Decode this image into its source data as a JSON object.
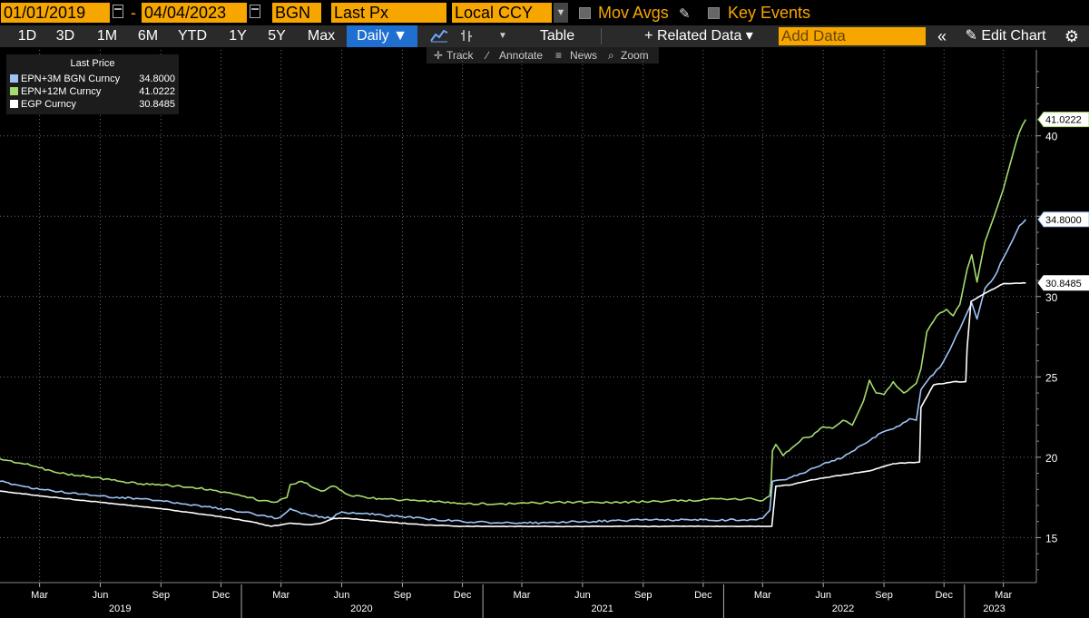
{
  "toolbar": {
    "start_date": "01/01/2019",
    "end_date": "04/04/2023",
    "source": "BGN",
    "field": "Last Px",
    "currency": "Local CCY",
    "mov_avgs": "Mov Avgs",
    "key_events": "Key Events"
  },
  "ranges": [
    "1D",
    "3D",
    "1M",
    "6M",
    "YTD",
    "1Y",
    "5Y",
    "Max"
  ],
  "periodicity": "Daily ▼",
  "table_label": "Table",
  "related_data": "+ Related Data ▾",
  "add_data_placeholder": "Add Data",
  "collapse": "«",
  "edit_chart": "✎ Edit Chart",
  "settings_icon": "gear-icon",
  "subtools": {
    "track": "Track",
    "annotate": "Annotate",
    "news": "News",
    "zoom": "Zoom"
  },
  "chart_data": {
    "type": "line",
    "legend": {
      "header": "Last Price",
      "placement": "top-left",
      "entries": [
        {
          "name": "EPN+3M BGN Curncy",
          "value": "34.8000",
          "color": "#9dc3f5"
        },
        {
          "name": "EPN+12M Curncy",
          "value": "41.0222",
          "color": "#a6db6e"
        },
        {
          "name": "EGP Curncy",
          "value": "30.8485",
          "color": "#ffffff"
        }
      ]
    },
    "ylim": [
      12.2,
      44.5
    ],
    "yticks": [
      15,
      20,
      25,
      30,
      35,
      40
    ],
    "ytick_labels": [
      "15",
      "20",
      "25",
      "30",
      "",
      "40"
    ],
    "grid": true,
    "xlim": [
      "2018-12-31",
      "2023-04-20"
    ],
    "x_month_ticks": [
      {
        "date": "2019-03-01",
        "label": "Mar"
      },
      {
        "date": "2019-06-01",
        "label": "Jun"
      },
      {
        "date": "2019-09-01",
        "label": "Sep"
      },
      {
        "date": "2019-12-01",
        "label": "Dec"
      },
      {
        "date": "2020-03-01",
        "label": "Mar"
      },
      {
        "date": "2020-06-01",
        "label": "Jun"
      },
      {
        "date": "2020-09-01",
        "label": "Sep"
      },
      {
        "date": "2020-12-01",
        "label": "Dec"
      },
      {
        "date": "2021-03-01",
        "label": "Mar"
      },
      {
        "date": "2021-06-01",
        "label": "Jun"
      },
      {
        "date": "2021-09-01",
        "label": "Sep"
      },
      {
        "date": "2021-12-01",
        "label": "Dec"
      },
      {
        "date": "2022-03-01",
        "label": "Mar"
      },
      {
        "date": "2022-06-01",
        "label": "Jun"
      },
      {
        "date": "2022-09-01",
        "label": "Sep"
      },
      {
        "date": "2022-12-01",
        "label": "Dec"
      },
      {
        "date": "2023-03-01",
        "label": "Mar"
      }
    ],
    "x_year_ticks": [
      {
        "date": "2019-07-01",
        "label": "2019"
      },
      {
        "date": "2020-07-01",
        "label": "2020"
      },
      {
        "date": "2021-07-01",
        "label": "2021"
      },
      {
        "date": "2022-07-01",
        "label": "2022"
      },
      {
        "date": "2023-02-15",
        "label": "2023"
      }
    ],
    "x_year_dividers": [
      "2020-01-01",
      "2021-01-01",
      "2022-01-01",
      "2023-01-01"
    ],
    "last_value_labels": [
      {
        "series": "EPN+12M Curncy",
        "text": "41.0222",
        "y": 41.0222,
        "color": "#a6db6e"
      },
      {
        "series": "EPN+3M BGN Curncy",
        "text": "34.8000",
        "y": 34.8,
        "color": "#9dc3f5"
      },
      {
        "series": "EGP Curncy",
        "text": "30.8485",
        "y": 30.8485,
        "color": "#ffffff"
      }
    ],
    "series": [
      {
        "name": "EPN+12M Curncy",
        "color": "#a6db6e",
        "points": [
          [
            "2018-12-31",
            19.9
          ],
          [
            "2019-02-15",
            19.5
          ],
          [
            "2019-04-01",
            19.0
          ],
          [
            "2019-05-15",
            18.8
          ],
          [
            "2019-07-01",
            18.5
          ],
          [
            "2019-08-15",
            18.3
          ],
          [
            "2019-10-01",
            18.2
          ],
          [
            "2019-11-15",
            18.0
          ],
          [
            "2020-01-01",
            17.6
          ],
          [
            "2020-02-01",
            17.3
          ],
          [
            "2020-02-20",
            17.2
          ],
          [
            "2020-03-10",
            17.5
          ],
          [
            "2020-03-15",
            18.3
          ],
          [
            "2020-04-01",
            18.5
          ],
          [
            "2020-05-01",
            17.9
          ],
          [
            "2020-05-20",
            18.2
          ],
          [
            "2020-06-15",
            17.6
          ],
          [
            "2020-08-01",
            17.4
          ],
          [
            "2020-10-01",
            17.3
          ],
          [
            "2020-12-01",
            17.1
          ],
          [
            "2021-02-01",
            17.1
          ],
          [
            "2021-05-01",
            17.2
          ],
          [
            "2021-08-01",
            17.2
          ],
          [
            "2021-11-01",
            17.3
          ],
          [
            "2022-01-01",
            17.4
          ],
          [
            "2022-02-15",
            17.4
          ],
          [
            "2022-03-01",
            17.3
          ],
          [
            "2022-03-12",
            17.6
          ],
          [
            "2022-03-14",
            18.5
          ],
          [
            "2022-03-16",
            20.4
          ],
          [
            "2022-03-21",
            20.8
          ],
          [
            "2022-04-01",
            20.1
          ],
          [
            "2022-04-15",
            20.6
          ],
          [
            "2022-05-01",
            21.2
          ],
          [
            "2022-05-15",
            21.3
          ],
          [
            "2022-06-01",
            21.9
          ],
          [
            "2022-06-15",
            21.8
          ],
          [
            "2022-07-01",
            22.3
          ],
          [
            "2022-07-15",
            22.0
          ],
          [
            "2022-08-01",
            23.5
          ],
          [
            "2022-08-10",
            24.8
          ],
          [
            "2022-08-20",
            24.0
          ],
          [
            "2022-09-01",
            23.9
          ],
          [
            "2022-09-15",
            24.7
          ],
          [
            "2022-10-01",
            24.0
          ],
          [
            "2022-10-20",
            24.6
          ],
          [
            "2022-10-27",
            25.5
          ],
          [
            "2022-11-05",
            27.8
          ],
          [
            "2022-11-20",
            28.8
          ],
          [
            "2022-12-05",
            29.2
          ],
          [
            "2022-12-15",
            28.8
          ],
          [
            "2022-12-25",
            29.5
          ],
          [
            "2023-01-05",
            31.7
          ],
          [
            "2023-01-12",
            32.6
          ],
          [
            "2023-01-20",
            30.9
          ],
          [
            "2023-02-01",
            33.4
          ],
          [
            "2023-02-15",
            35.0
          ],
          [
            "2023-03-01",
            36.7
          ],
          [
            "2023-03-15",
            38.8
          ],
          [
            "2023-03-25",
            40.2
          ],
          [
            "2023-04-04",
            41.0222
          ]
        ]
      },
      {
        "name": "EPN+3M BGN Curncy",
        "color": "#9dc3f5",
        "points": [
          [
            "2018-12-31",
            18.5
          ],
          [
            "2019-03-01",
            18.0
          ],
          [
            "2019-06-01",
            17.6
          ],
          [
            "2019-09-01",
            17.3
          ],
          [
            "2019-12-01",
            16.8
          ],
          [
            "2020-02-01",
            16.4
          ],
          [
            "2020-02-25",
            16.2
          ],
          [
            "2020-03-15",
            16.8
          ],
          [
            "2020-04-01",
            16.5
          ],
          [
            "2020-05-15",
            16.2
          ],
          [
            "2020-06-01",
            16.6
          ],
          [
            "2020-07-01",
            16.5
          ],
          [
            "2020-09-01",
            16.3
          ],
          [
            "2020-12-01",
            16.0
          ],
          [
            "2021-03-01",
            15.9
          ],
          [
            "2021-06-01",
            16.0
          ],
          [
            "2021-09-01",
            16.1
          ],
          [
            "2021-12-01",
            16.1
          ],
          [
            "2022-02-01",
            16.1
          ],
          [
            "2022-03-01",
            16.2
          ],
          [
            "2022-03-12",
            16.7
          ],
          [
            "2022-03-16",
            18.5
          ],
          [
            "2022-04-01",
            18.6
          ],
          [
            "2022-05-01",
            19.0
          ],
          [
            "2022-06-01",
            19.6
          ],
          [
            "2022-07-01",
            20.0
          ],
          [
            "2022-08-01",
            20.8
          ],
          [
            "2022-08-15",
            21.2
          ],
          [
            "2022-09-01",
            21.6
          ],
          [
            "2022-09-20",
            21.9
          ],
          [
            "2022-10-10",
            22.4
          ],
          [
            "2022-10-20",
            22.3
          ],
          [
            "2022-10-27",
            24.2
          ],
          [
            "2022-11-10",
            25.0
          ],
          [
            "2022-11-25",
            25.6
          ],
          [
            "2022-12-10",
            26.7
          ],
          [
            "2022-12-20",
            27.6
          ],
          [
            "2023-01-05",
            29.0
          ],
          [
            "2023-01-12",
            29.6
          ],
          [
            "2023-01-20",
            28.6
          ],
          [
            "2023-02-01",
            30.5
          ],
          [
            "2023-02-15",
            31.2
          ],
          [
            "2023-03-01",
            32.4
          ],
          [
            "2023-03-15",
            33.5
          ],
          [
            "2023-03-25",
            34.4
          ],
          [
            "2023-04-04",
            34.8
          ]
        ]
      },
      {
        "name": "EGP Curncy",
        "color": "#ffffff",
        "points": [
          [
            "2018-12-31",
            17.9
          ],
          [
            "2019-03-01",
            17.6
          ],
          [
            "2019-06-01",
            17.2
          ],
          [
            "2019-09-01",
            16.8
          ],
          [
            "2019-12-01",
            16.3
          ],
          [
            "2020-01-15",
            16.0
          ],
          [
            "2020-02-15",
            15.7
          ],
          [
            "2020-03-01",
            15.8
          ],
          [
            "2020-03-15",
            15.9
          ],
          [
            "2020-04-15",
            15.8
          ],
          [
            "2020-05-01",
            15.9
          ],
          [
            "2020-05-20",
            16.2
          ],
          [
            "2020-06-10",
            16.2
          ],
          [
            "2020-08-01",
            16.0
          ],
          [
            "2020-10-01",
            15.8
          ],
          [
            "2020-12-01",
            15.7
          ],
          [
            "2021-04-01",
            15.7
          ],
          [
            "2021-08-01",
            15.7
          ],
          [
            "2021-12-01",
            15.7
          ],
          [
            "2022-03-15",
            15.7
          ],
          [
            "2022-03-21",
            18.2
          ],
          [
            "2022-04-15",
            18.3
          ],
          [
            "2022-05-15",
            18.6
          ],
          [
            "2022-07-01",
            18.9
          ],
          [
            "2022-08-15",
            19.2
          ],
          [
            "2022-09-15",
            19.6
          ],
          [
            "2022-10-25",
            19.7
          ],
          [
            "2022-10-27",
            23.1
          ],
          [
            "2022-11-15",
            24.5
          ],
          [
            "2022-12-15",
            24.7
          ],
          [
            "2023-01-03",
            24.7
          ],
          [
            "2023-01-05",
            26.8
          ],
          [
            "2023-01-11",
            29.7
          ],
          [
            "2023-02-01",
            30.2
          ],
          [
            "2023-03-01",
            30.8
          ],
          [
            "2023-04-04",
            30.8485
          ]
        ]
      }
    ]
  }
}
